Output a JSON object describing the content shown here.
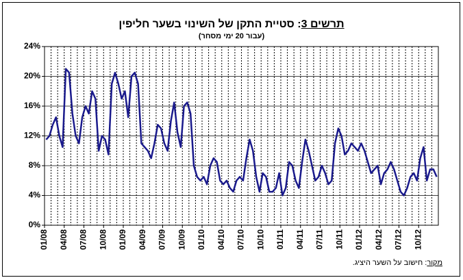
{
  "chart_data": {
    "type": "line",
    "title": [
      "תרשים 3",
      ": סטיית התקן של השינוי בשער חליפין"
    ],
    "subtitle": "(עבור 20 ימי מסחר)",
    "source": [
      "מקור",
      ": חישוב על השער היציג."
    ],
    "x": [
      "01/08",
      null,
      null,
      null,
      null,
      null,
      "04/08",
      null,
      null,
      null,
      null,
      null,
      "07/08",
      null,
      null,
      null,
      null,
      null,
      "10/08",
      null,
      null,
      null,
      null,
      null,
      "01/09",
      null,
      null,
      null,
      null,
      null,
      "04/09",
      null,
      null,
      null,
      null,
      null,
      "07/09",
      null,
      null,
      null,
      null,
      null,
      "10/09",
      null,
      null,
      null,
      null,
      null,
      "01/10",
      null,
      null,
      null,
      null,
      null,
      "04/10",
      null,
      null,
      null,
      null,
      null,
      "07/10",
      null,
      null,
      null,
      null,
      null,
      "10/10",
      null,
      null,
      null,
      null,
      null,
      "01/11",
      null,
      null,
      null,
      null,
      null,
      "04/11",
      null,
      null,
      null,
      null,
      null,
      "07/11",
      null,
      null,
      null,
      null,
      null,
      "10/11",
      null,
      null,
      null,
      null,
      null,
      "01/12",
      null,
      null,
      null,
      null,
      null,
      "04/12",
      null,
      null,
      null,
      null,
      null,
      "07/12",
      null,
      null,
      null,
      null,
      null,
      "10/12",
      null,
      null,
      null,
      null,
      null
    ],
    "series": [
      {
        "color": "#1a1a8c",
        "values": [
          11.5,
          12,
          13.5,
          14.5,
          12,
          10.5,
          21,
          20.5,
          15,
          12,
          11,
          14.5,
          16,
          15,
          18,
          17,
          10,
          12,
          11.5,
          9.5,
          19,
          20.5,
          19,
          17,
          18,
          14.5,
          20,
          20.5,
          19,
          11,
          10.5,
          10,
          9,
          11,
          13.5,
          13,
          11,
          10,
          14,
          16.5,
          12.5,
          10.5,
          16,
          16.5,
          15,
          8,
          6.5,
          6,
          6.5,
          5.5,
          8,
          9,
          8.5,
          6,
          5.5,
          6,
          5,
          4.5,
          6,
          6.5,
          6,
          9,
          11.5,
          10,
          6.5,
          4.5,
          7,
          6.5,
          4.5,
          4.5,
          5,
          7,
          4,
          5,
          8.5,
          8,
          6,
          5,
          8.5,
          11.5,
          10,
          8,
          6,
          6.5,
          8,
          7,
          5.5,
          6,
          11,
          13,
          12,
          9.5,
          10,
          11,
          10.5,
          10,
          11,
          10,
          8.5,
          7,
          7.5,
          8,
          5.5,
          7,
          7.5,
          8.5,
          7.5,
          6,
          4.5,
          4,
          5,
          6.5,
          7,
          6,
          9,
          10.5,
          6,
          7.5,
          7.5,
          6.5
        ]
      }
    ],
    "ylim": [
      0,
      24
    ],
    "yticks": [
      {
        "value": 0,
        "label": "0%"
      },
      {
        "value": 4,
        "label": "4%"
      },
      {
        "value": 8,
        "label": "8%"
      },
      {
        "value": 12,
        "label": "12%"
      },
      {
        "value": 16,
        "label": "16%"
      },
      {
        "value": 20,
        "label": "20%"
      },
      {
        "value": 24,
        "label": "24%"
      }
    ],
    "grid": true
  }
}
